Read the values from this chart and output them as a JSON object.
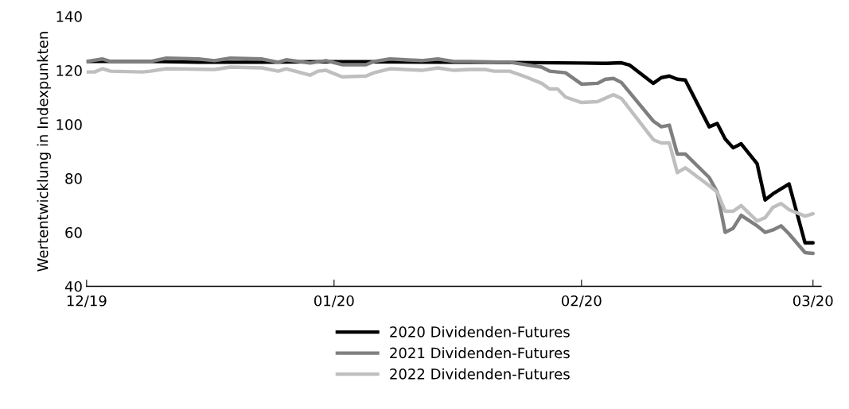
{
  "chart_data": {
    "type": "line",
    "ylabel": "Wertentwicklung in Indexpunkten",
    "xlim": [
      "2019-12-01",
      "2020-03-02"
    ],
    "xticks": [
      {
        "value": "2019-12-01",
        "label": "12/19"
      },
      {
        "value": "2020-01-01",
        "label": "01/20"
      },
      {
        "value": "2020-02-01",
        "label": "02/20"
      },
      {
        "value": "2020-03-01",
        "label": "03/20"
      }
    ],
    "ylim": [
      40,
      140
    ],
    "yticks": [
      40,
      60,
      80,
      100,
      120,
      140
    ],
    "grid": false,
    "legend": "bottom",
    "marker": "none",
    "line_style": "solid",
    "series": [
      {
        "name": "2020 Dividenden-Futures",
        "color": "#000000",
        "x": [
          "2019-12-01",
          "2019-12-09",
          "2019-12-15",
          "2019-12-23",
          "2019-12-29",
          "2020-01-05",
          "2020-01-14",
          "2020-01-20",
          "2020-02-01",
          "2020-02-04",
          "2020-02-06",
          "2020-02-07",
          "2020-02-10",
          "2020-02-11",
          "2020-02-12",
          "2020-02-13",
          "2020-02-14",
          "2020-02-17",
          "2020-02-18",
          "2020-02-19",
          "2020-02-20",
          "2020-02-21",
          "2020-02-23",
          "2020-02-24",
          "2020-02-25",
          "2020-02-27",
          "2020-02-29",
          "2020-03-01"
        ],
        "values": [
          123.3,
          123.3,
          123.0,
          123.0,
          123.2,
          123.2,
          123.0,
          123.0,
          122.7,
          122.6,
          122.8,
          122.0,
          115.2,
          117.3,
          117.9,
          116.7,
          116.4,
          99.1,
          100.3,
          94.6,
          91.3,
          92.8,
          85.4,
          72.0,
          74.3,
          77.9,
          56.1,
          56.1
        ]
      },
      {
        "name": "2021 Dividenden-Futures",
        "color": "#7f7f7f",
        "x": [
          "2019-12-01",
          "2019-12-03",
          "2019-12-04",
          "2019-12-09",
          "2019-12-11",
          "2019-12-15",
          "2019-12-17",
          "2019-12-19",
          "2019-12-23",
          "2019-12-25",
          "2019-12-26",
          "2019-12-29",
          "2019-12-31",
          "2020-01-02",
          "2020-01-05",
          "2020-01-06",
          "2020-01-08",
          "2020-01-12",
          "2020-01-14",
          "2020-01-16",
          "2020-01-18",
          "2020-01-23",
          "2020-01-27",
          "2020-01-28",
          "2020-01-30",
          "2020-02-01",
          "2020-02-03",
          "2020-02-04",
          "2020-02-05",
          "2020-02-06",
          "2020-02-10",
          "2020-02-11",
          "2020-02-12",
          "2020-02-13",
          "2020-02-14",
          "2020-02-17",
          "2020-02-18",
          "2020-02-19",
          "2020-02-20",
          "2020-02-21",
          "2020-02-23",
          "2020-02-24",
          "2020-02-25",
          "2020-02-26",
          "2020-02-27",
          "2020-02-29",
          "2020-03-01"
        ],
        "values": [
          123.3,
          124.2,
          123.3,
          123.3,
          124.5,
          124.2,
          123.6,
          124.5,
          124.2,
          123.0,
          123.9,
          122.7,
          123.6,
          122.1,
          122.1,
          123.3,
          124.2,
          123.6,
          124.2,
          123.3,
          123.3,
          123.0,
          121.2,
          119.7,
          119.1,
          114.9,
          115.2,
          116.7,
          117.0,
          115.5,
          101.2,
          99.1,
          99.7,
          89.0,
          89.0,
          80.3,
          74.9,
          60.0,
          61.5,
          66.3,
          62.4,
          60.0,
          60.9,
          62.4,
          59.4,
          52.5,
          52.2
        ]
      },
      {
        "name": "2022 Dividenden-Futures",
        "color": "#bfbfbf",
        "x": [
          "2019-12-01",
          "2019-12-02",
          "2019-12-03",
          "2019-12-04",
          "2019-12-08",
          "2019-12-09",
          "2019-12-11",
          "2019-12-17",
          "2019-12-19",
          "2019-12-23",
          "2019-12-25",
          "2019-12-26",
          "2019-12-29",
          "2019-12-30",
          "2019-12-31",
          "2020-01-02",
          "2020-01-05",
          "2020-01-06",
          "2020-01-08",
          "2020-01-12",
          "2020-01-14",
          "2020-01-16",
          "2020-01-18",
          "2020-01-20",
          "2020-01-21",
          "2020-01-23",
          "2020-01-25",
          "2020-01-27",
          "2020-01-28",
          "2020-01-29",
          "2020-01-30",
          "2020-02-01",
          "2020-02-03",
          "2020-02-05",
          "2020-02-06",
          "2020-02-10",
          "2020-02-11",
          "2020-02-12",
          "2020-02-13",
          "2020-02-14",
          "2020-02-17",
          "2020-02-18",
          "2020-02-19",
          "2020-02-20",
          "2020-02-21",
          "2020-02-23",
          "2020-02-24",
          "2020-02-25",
          "2020-02-26",
          "2020-02-27",
          "2020-02-29",
          "2020-03-01"
        ],
        "values": [
          119.4,
          119.4,
          120.6,
          119.7,
          119.4,
          119.7,
          120.6,
          120.3,
          121.2,
          120.9,
          119.7,
          120.6,
          118.2,
          119.7,
          120.0,
          117.6,
          117.9,
          119.1,
          120.6,
          120.0,
          120.9,
          120.0,
          120.3,
          120.3,
          119.7,
          119.7,
          117.6,
          115.2,
          113.1,
          113.1,
          110.1,
          108.1,
          108.4,
          111.0,
          109.6,
          94.3,
          93.1,
          93.1,
          82.1,
          83.9,
          77.3,
          74.9,
          67.8,
          67.8,
          69.9,
          64.2,
          65.4,
          69.3,
          70.7,
          68.4,
          66.0,
          66.9
        ]
      }
    ]
  }
}
